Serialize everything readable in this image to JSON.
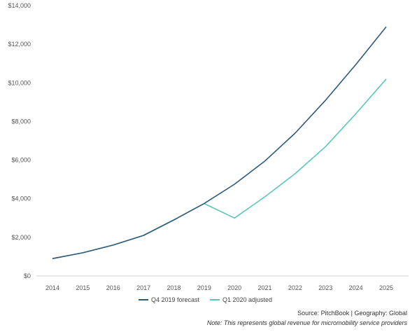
{
  "chart_data": {
    "type": "line",
    "title": "",
    "xlabel": "",
    "ylabel": "",
    "x": [
      "2014",
      "2015",
      "2016",
      "2017",
      "2018",
      "2019",
      "2020",
      "2021",
      "2022",
      "2023",
      "2024",
      "2025"
    ],
    "ylim": [
      0,
      14000
    ],
    "yticks": [
      0,
      2000,
      4000,
      6000,
      8000,
      10000,
      12000,
      14000
    ],
    "ytick_labels": [
      "$0",
      "$2,000",
      "$4,000",
      "$6,000",
      "$8,000",
      "$10,000",
      "$12,000",
      "$14,000"
    ],
    "grid": false,
    "legend_position": "bottom",
    "series": [
      {
        "name": "Q4 2019 forecast",
        "color": "#2e5a7a",
        "values": [
          900,
          1200,
          1600,
          2100,
          2900,
          3750,
          4750,
          5950,
          7400,
          9100,
          10950,
          12900
        ]
      },
      {
        "name": "Q1 2020 adjusted",
        "color": "#5cc6b8",
        "values": [
          900,
          1200,
          1600,
          2100,
          2900,
          3750,
          3000,
          4100,
          5300,
          6700,
          8400,
          10200
        ]
      }
    ]
  },
  "footer": {
    "source": "Source: PitchBook | Geography: Global",
    "note": "Note: This represents global revenue for micromobility service providers"
  }
}
